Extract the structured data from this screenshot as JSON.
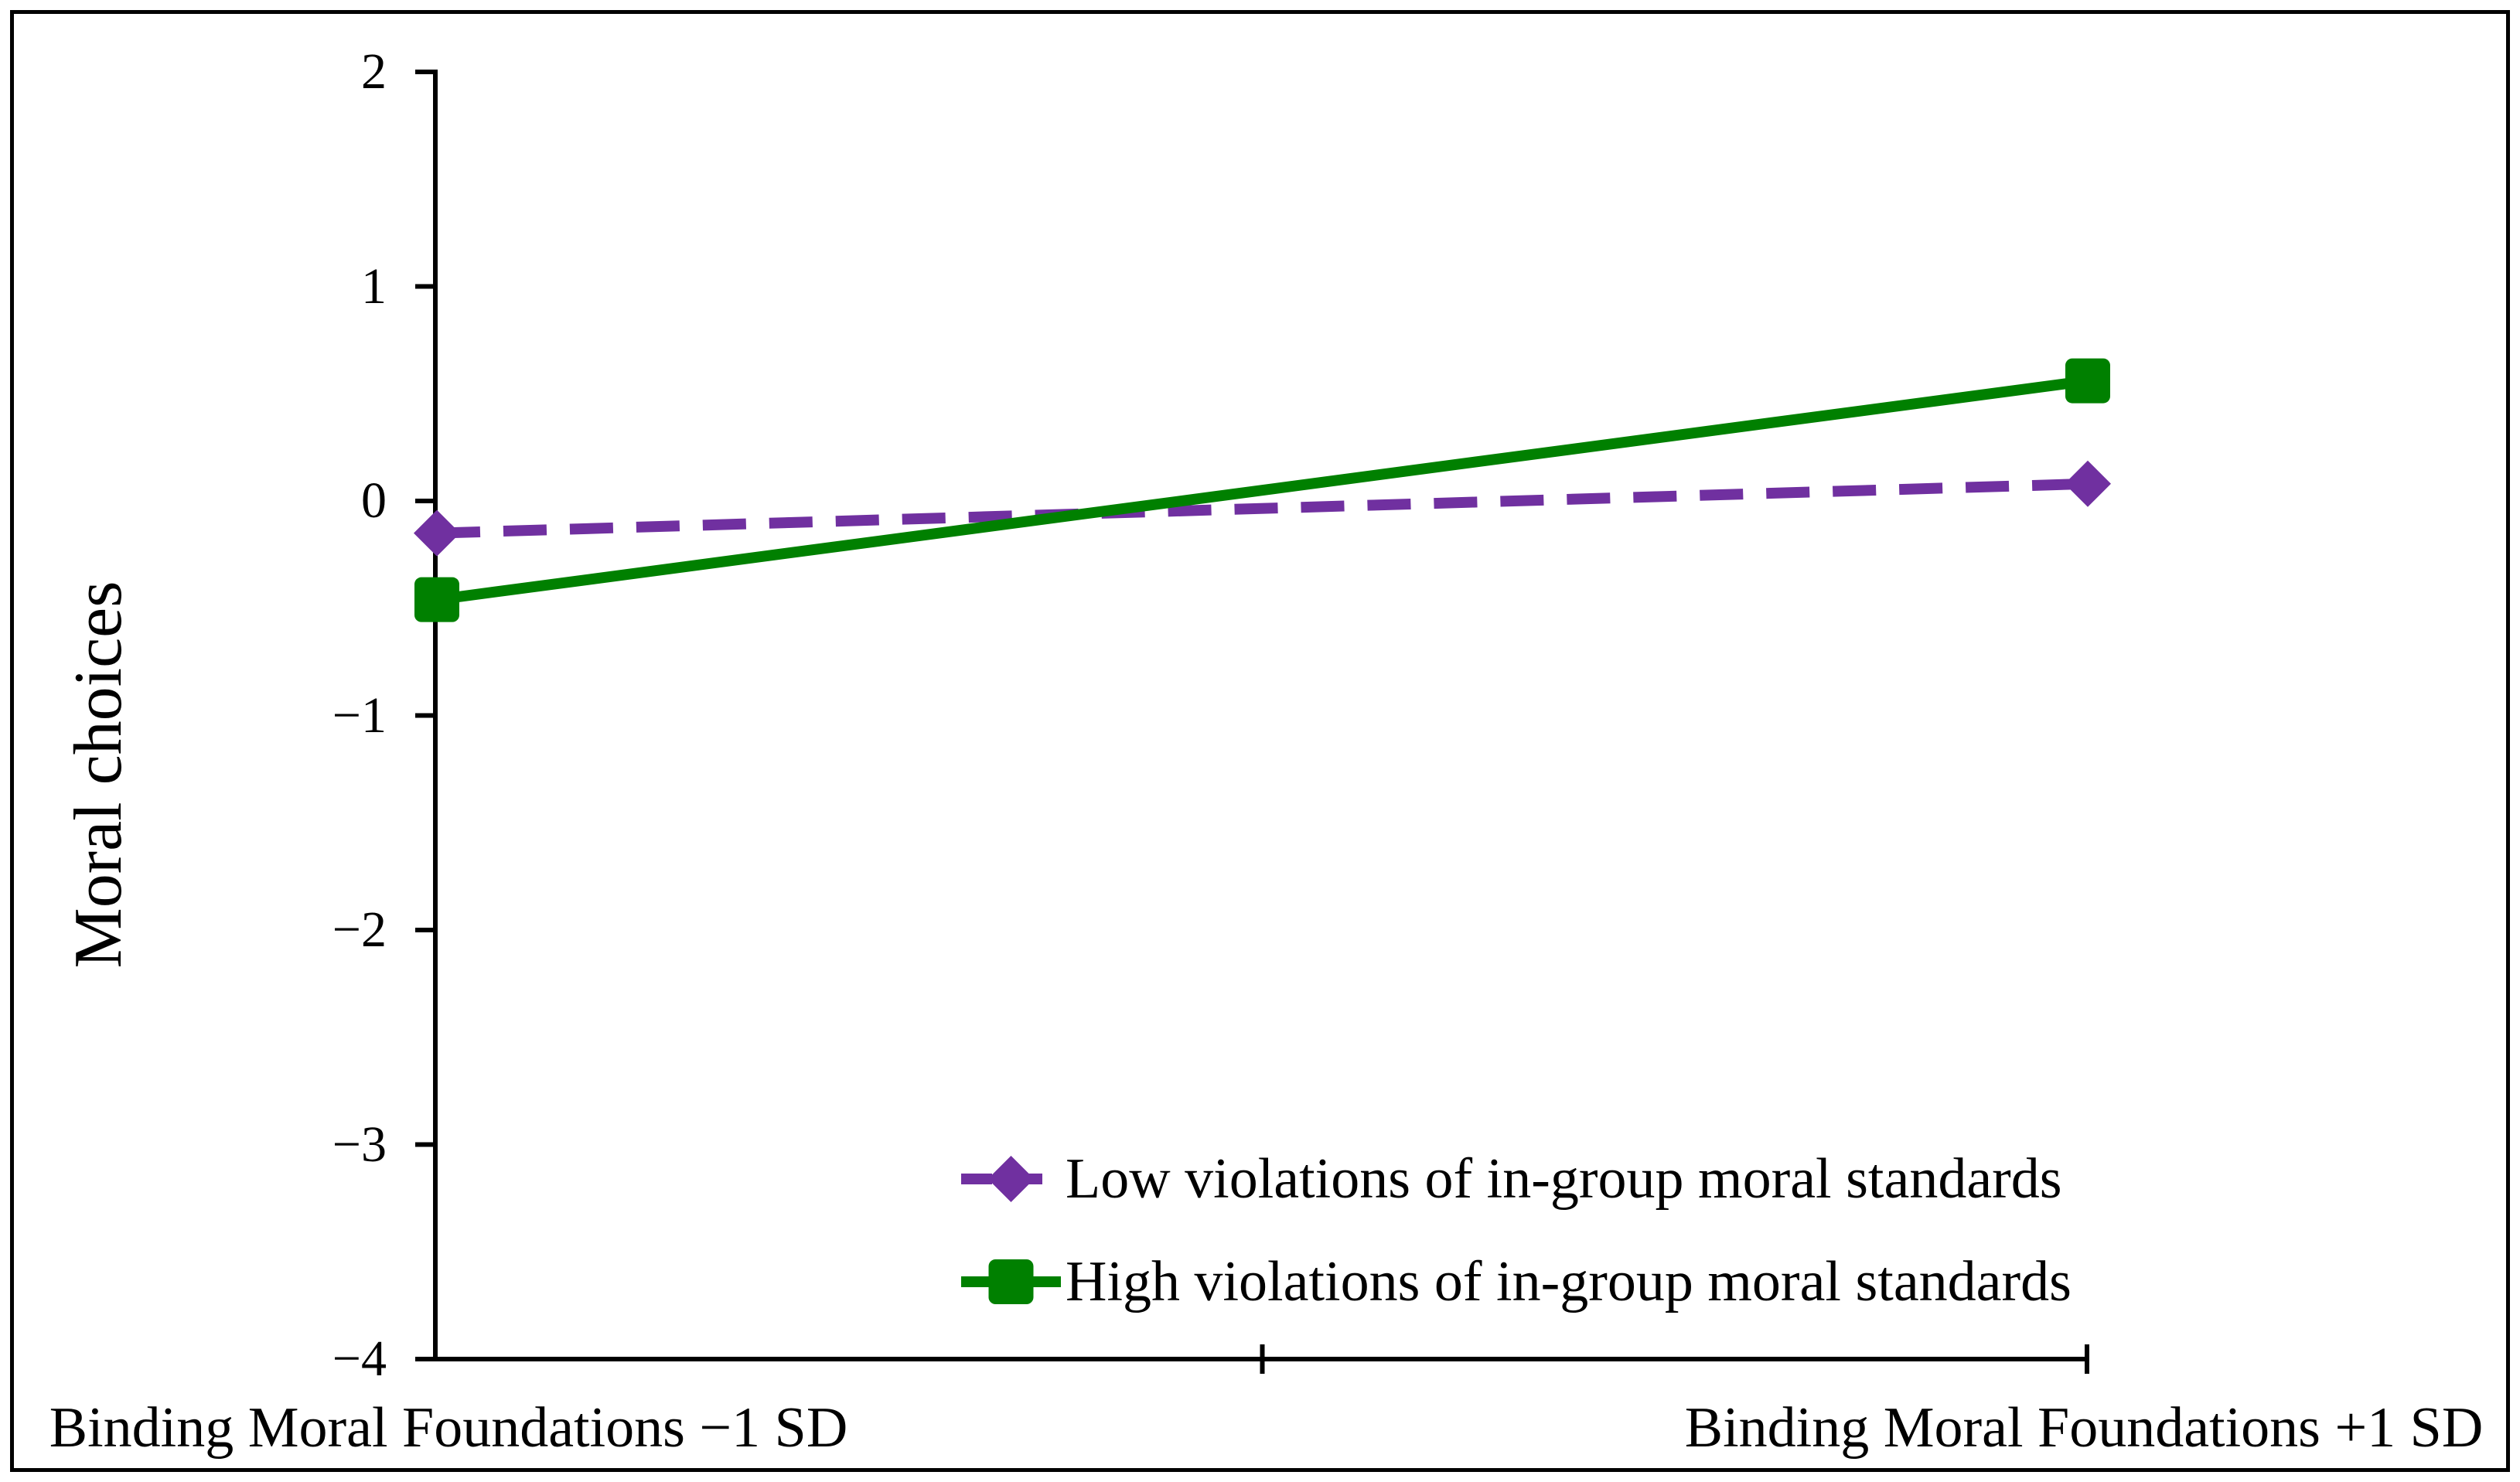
{
  "figure": {
    "y_axis": {
      "title": "Moral choices",
      "tick_labels": [
        "2",
        "1",
        "0",
        "−1",
        "−2",
        "−3",
        "−4"
      ],
      "tick_values": [
        2,
        1,
        0,
        -1,
        -2,
        -3,
        -4
      ]
    },
    "x_axis": {
      "categories": [
        "Binding Moral Foundations −1 SD",
        "Binding Moral Foundations +1 SD"
      ]
    },
    "legend": {
      "items": [
        {
          "label": "Low violations of in-group moral standards",
          "color": "#7030A0",
          "marker": "diamond",
          "line_style": "dashed"
        },
        {
          "label": "High violations of in-group moral standards",
          "color": "#008000",
          "marker": "square",
          "line_style": "solid"
        }
      ]
    },
    "colors": {
      "purple": "#7030A0",
      "green": "#008000",
      "axis": "#000000",
      "background": "#ffffff"
    }
  },
  "chart_data": {
    "type": "line",
    "categories": [
      "Binding Moral Foundations −1 SD",
      "Binding Moral Foundations +1 SD"
    ],
    "series": [
      {
        "name": "Low violations of in-group moral standards",
        "values": [
          -0.15,
          0.08
        ],
        "color": "#7030A0",
        "line_style": "dashed",
        "marker": "diamond"
      },
      {
        "name": "High violations of in-group moral standards",
        "values": [
          -0.46,
          0.56
        ],
        "color": "#008000",
        "line_style": "solid",
        "marker": "square"
      }
    ],
    "title": "",
    "xlabel": "",
    "ylabel": "Moral choices",
    "ylim": [
      -4,
      2
    ],
    "yticks": [
      2,
      1,
      0,
      -1,
      -2,
      -3,
      -4
    ],
    "grid": false,
    "legend_position": "inside-bottom-right",
    "plot_border": "figure framed with black rectangle"
  }
}
